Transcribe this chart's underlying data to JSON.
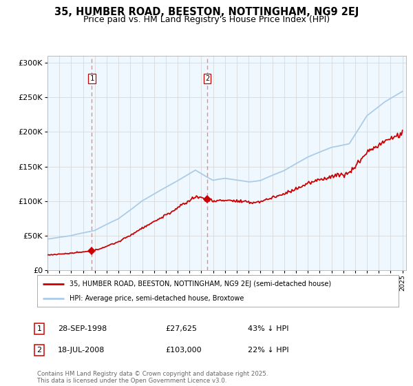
{
  "title_line1": "35, HUMBER ROAD, BEESTON, NOTTINGHAM, NG9 2EJ",
  "title_line2": "Price paid vs. HM Land Registry's House Price Index (HPI)",
  "ylim": [
    0,
    310000
  ],
  "yticks": [
    0,
    50000,
    100000,
    150000,
    200000,
    250000,
    300000
  ],
  "ytick_labels": [
    "£0",
    "£50K",
    "£100K",
    "£150K",
    "£200K",
    "£250K",
    "£300K"
  ],
  "x_start_year": 1995,
  "x_end_year": 2025,
  "hpi_color": "#aacce8",
  "price_color": "#cc0000",
  "marker1_year": 1998.73,
  "marker1_price": 27625,
  "marker2_year": 2008.54,
  "marker2_price": 103000,
  "marker1_date": "28-SEP-1998",
  "marker2_date": "18-JUL-2008",
  "legend_line1": "35, HUMBER ROAD, BEESTON, NOTTINGHAM, NG9 2EJ (semi-detached house)",
  "legend_line2": "HPI: Average price, semi-detached house, Broxtowe",
  "footer": "Contains HM Land Registry data © Crown copyright and database right 2025.\nThis data is licensed under the Open Government Licence v3.0.",
  "bg_color": "#f0f8ff",
  "grid_color": "#d8d8d8",
  "dashed_line_color": "#ee8888",
  "title_fontsize": 10.5,
  "subtitle_fontsize": 9
}
